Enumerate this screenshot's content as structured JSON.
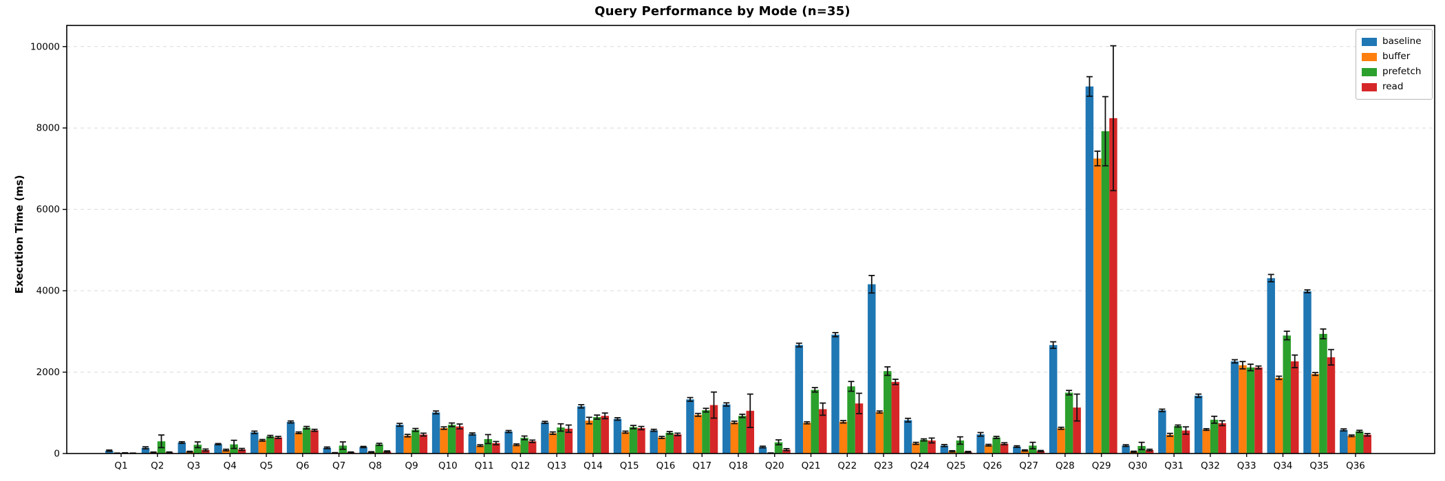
{
  "title": "Query Performance by Mode (n=35)",
  "ylabel": "Execution Time (ms)",
  "chart_data": {
    "type": "bar",
    "title": "Query Performance by Mode (n=35)",
    "xlabel": "",
    "ylabel": "Execution Time (ms)",
    "ylim": [
      0,
      10520
    ],
    "yticks": [
      0,
      2000,
      4000,
      6000,
      8000,
      10000
    ],
    "grid": "horizontal dashed",
    "legend_position": "upper right",
    "error_bars": true,
    "categories": [
      "Q1",
      "Q2",
      "Q3",
      "Q4",
      "Q5",
      "Q6",
      "Q7",
      "Q8",
      "Q9",
      "Q10",
      "Q11",
      "Q12",
      "Q13",
      "Q14",
      "Q15",
      "Q16",
      "Q17",
      "Q18",
      "Q20",
      "Q21",
      "Q22",
      "Q23",
      "Q24",
      "Q25",
      "Q26",
      "Q27",
      "Q28",
      "Q29",
      "Q30",
      "Q31",
      "Q32",
      "Q33",
      "Q34",
      "Q35",
      "Q36"
    ],
    "series": [
      {
        "name": "baseline",
        "color": "#1f77b4",
        "values": [
          70,
          140,
          270,
          230,
          520,
          775,
          140,
          160,
          705,
          1010,
          480,
          540,
          765,
          1160,
          850,
          570,
          1330,
          1205,
          160,
          2665,
          2920,
          4160,
          820,
          195,
          470,
          170,
          2665,
          9020,
          195,
          1060,
          1420,
          2265,
          4310,
          3985,
          580
        ],
        "errors": [
          15,
          25,
          20,
          15,
          30,
          25,
          20,
          15,
          35,
          35,
          25,
          25,
          25,
          40,
          30,
          25,
          45,
          40,
          20,
          45,
          50,
          215,
          45,
          25,
          45,
          20,
          80,
          240,
          20,
          30,
          40,
          40,
          90,
          35,
          25
        ]
      },
      {
        "name": "buffer",
        "color": "#ff7f0e",
        "values": [
          8,
          28,
          45,
          85,
          325,
          510,
          17,
          35,
          440,
          625,
          195,
          215,
          500,
          810,
          525,
          395,
          950,
          765,
          10,
          755,
          780,
          1020,
          250,
          55,
          205,
          75,
          620,
          7250,
          45,
          460,
          590,
          2170,
          1860,
          1955,
          435
        ],
        "errors": [
          3,
          8,
          10,
          20,
          20,
          20,
          5,
          10,
          30,
          30,
          20,
          20,
          30,
          80,
          25,
          25,
          35,
          30,
          4,
          25,
          30,
          25,
          25,
          15,
          20,
          15,
          25,
          180,
          12,
          35,
          20,
          90,
          40,
          35,
          20
        ]
      },
      {
        "name": "prefetch",
        "color": "#2ca02c",
        "values": [
          12,
          300,
          215,
          225,
          420,
          635,
          195,
          225,
          580,
          705,
          355,
          385,
          640,
          895,
          650,
          510,
          1065,
          925,
          275,
          1565,
          1650,
          2025,
          335,
          320,
          395,
          195,
          1495,
          7920,
          185,
          675,
          830,
          2115,
          2900,
          2940,
          545
        ],
        "errors": [
          6,
          155,
          70,
          100,
          25,
          30,
          90,
          25,
          35,
          45,
          110,
          45,
          90,
          50,
          40,
          30,
          45,
          40,
          60,
          55,
          120,
          105,
          25,
          90,
          25,
          80,
          55,
          850,
          90,
          25,
          85,
          80,
          105,
          120,
          25
        ]
      },
      {
        "name": "read",
        "color": "#d62728",
        "values": [
          8,
          28,
          85,
          100,
          395,
          570,
          28,
          50,
          465,
          665,
          255,
          300,
          610,
          925,
          625,
          470,
          1190,
          1050,
          95,
          1090,
          1230,
          1760,
          320,
          40,
          240,
          60,
          1130,
          8240,
          85,
          565,
          745,
          2115,
          2265,
          2365,
          460
        ],
        "errors": [
          3,
          10,
          25,
          25,
          25,
          25,
          10,
          15,
          35,
          60,
          40,
          30,
          90,
          70,
          40,
          30,
          320,
          410,
          25,
          150,
          250,
          65,
          60,
          12,
          25,
          15,
          330,
          1780,
          20,
          90,
          60,
          35,
          155,
          190,
          30
        ]
      }
    ]
  }
}
